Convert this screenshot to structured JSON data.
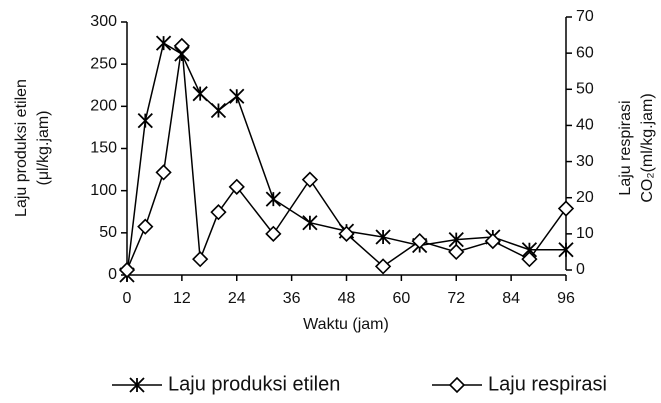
{
  "chart_data": {
    "type": "line",
    "x_label": "Waktu (jam)",
    "y_label": [
      "Laju produksi etilen",
      "(μl/kg.jam)"
    ],
    "y2_label": [
      "Laju respirasi",
      "CO₂(ml/kg.jam)"
    ],
    "x": [
      0,
      4,
      8,
      12,
      16,
      20,
      24,
      32,
      40,
      48,
      56,
      64,
      72,
      80,
      88,
      96
    ],
    "xlim": [
      0,
      96
    ],
    "xticks": [
      0,
      12,
      24,
      36,
      48,
      60,
      72,
      84,
      96
    ],
    "ylim": [
      0,
      300
    ],
    "yticks": [
      0,
      50,
      100,
      150,
      200,
      250,
      300
    ],
    "y2lim": [
      0,
      70
    ],
    "y2ticks": [
      0,
      10,
      20,
      30,
      40,
      50,
      60,
      70
    ],
    "legend": "bottom",
    "series": [
      {
        "name": "Laju produksi etilen",
        "color": "#000000",
        "marker": "star",
        "values": [
          0,
          183,
          275,
          262,
          215,
          195,
          212,
          90,
          62,
          52,
          45,
          35,
          42,
          45,
          30,
          30
        ]
      },
      {
        "name": "Laju respirasi",
        "color": "#000000",
        "marker": "diamond",
        "axis": "y2",
        "values": [
          0,
          12,
          27,
          62,
          3,
          16,
          23,
          10,
          25,
          10,
          1,
          8,
          5,
          8,
          3,
          17
        ]
      }
    ]
  }
}
